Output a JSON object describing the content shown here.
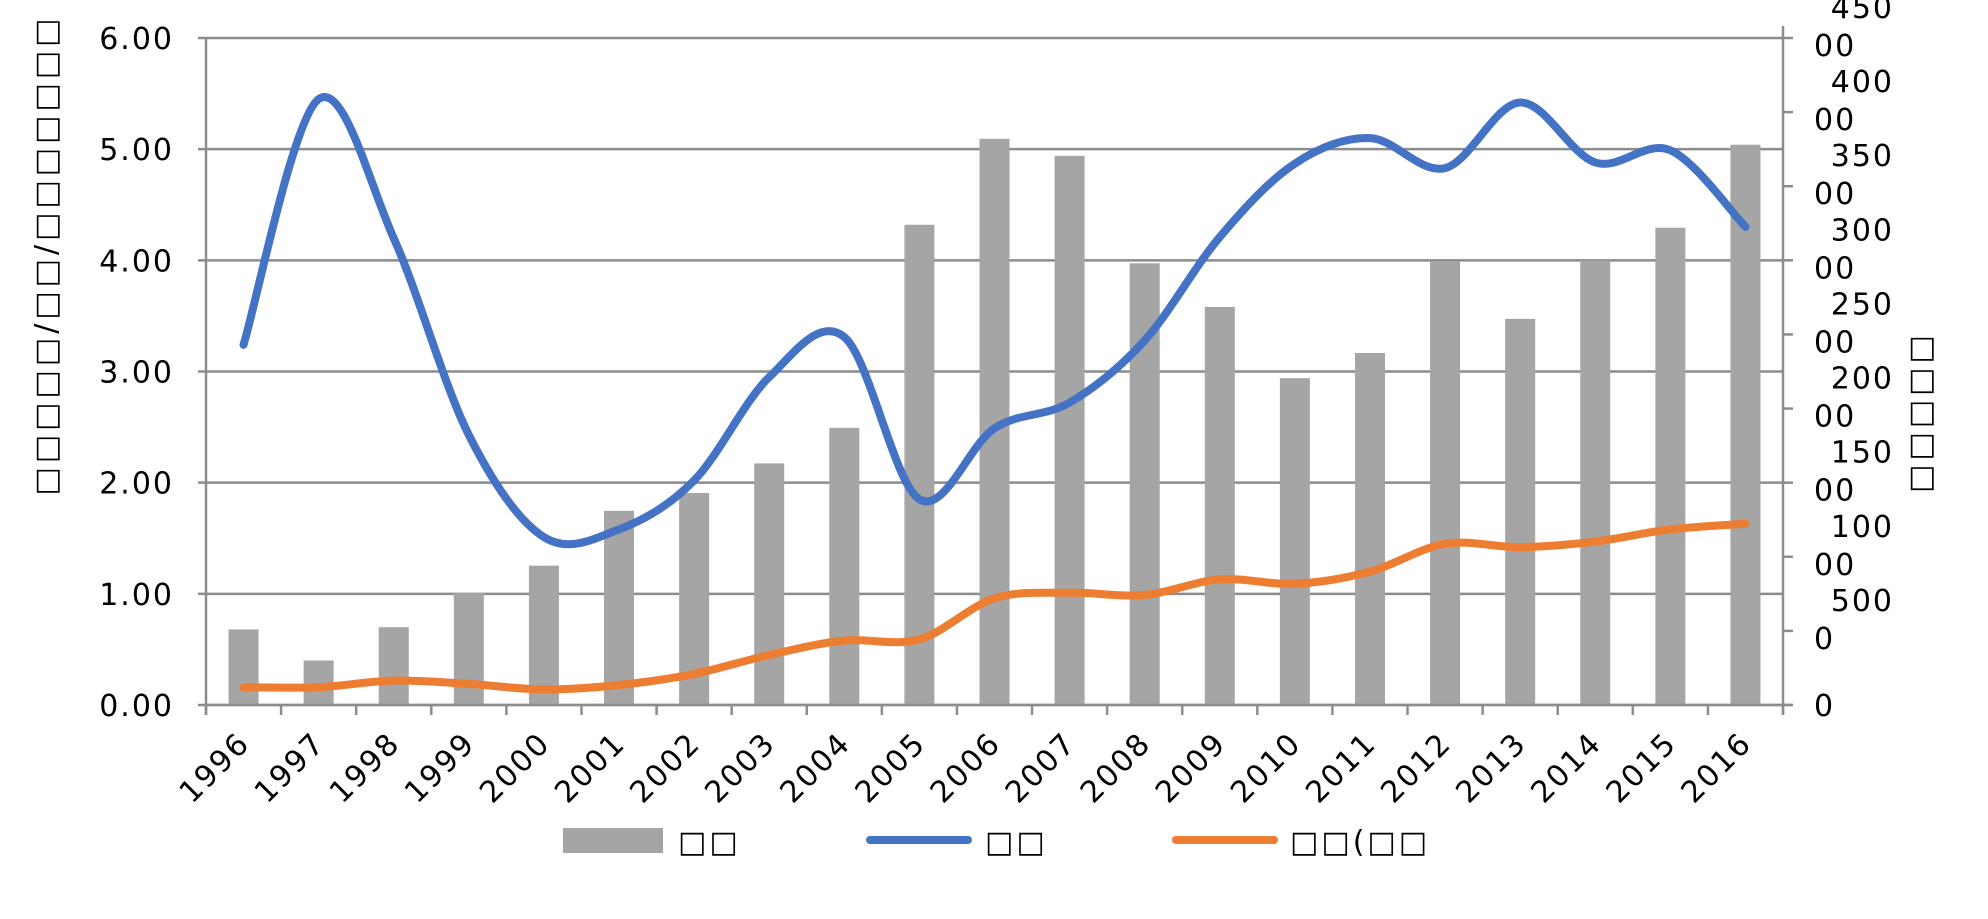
{
  "chart_data": {
    "type": "bar+line",
    "title": "",
    "categories": [
      "1996",
      "1997",
      "1998",
      "1999",
      "2000",
      "2001",
      "2002",
      "2003",
      "2004",
      "2005",
      "2006",
      "2007",
      "2008",
      "2009",
      "2010",
      "2011",
      "2012",
      "2013",
      "2014",
      "2015",
      "2016"
    ],
    "ylabel_left": "□□□□□/□□/□□□□□□□",
    "ylabel_right": "□□□□□",
    "left_axis": {
      "ylim": [
        0,
        6
      ],
      "ticks": [
        "0.00",
        "1.00",
        "2.00",
        "3.00",
        "4.00",
        "5.00",
        "6.00"
      ],
      "tick_values": [
        0,
        1,
        2,
        3,
        4,
        5,
        6
      ]
    },
    "right_axis": {
      "ylim": [
        0,
        45000
      ],
      "ticks": [
        {
          "line1": "0",
          "line2": ""
        },
        {
          "line1": "500",
          "line2": "0"
        },
        {
          "line1": "100",
          "line2": "00"
        },
        {
          "line1": "150",
          "line2": "00"
        },
        {
          "line1": "200",
          "line2": "00"
        },
        {
          "line1": "250",
          "line2": "00"
        },
        {
          "line1": "300",
          "line2": "00"
        },
        {
          "line1": "350",
          "line2": "00"
        },
        {
          "line1": "400",
          "line2": "00"
        },
        {
          "line1": "450",
          "line2": "00"
        }
      ],
      "tick_values": [
        0,
        5000,
        10000,
        15000,
        20000,
        25000,
        30000,
        35000,
        40000,
        45000
      ]
    },
    "grid": true,
    "legend_position": "bottom",
    "series": [
      {
        "name": "□□",
        "kind": "bar",
        "axis": "right",
        "color": "#A5A5A5",
        "values": [
          5100,
          3000,
          5250,
          7550,
          9400,
          13100,
          14300,
          16300,
          18700,
          32400,
          38200,
          37050,
          29800,
          26850,
          22050,
          23750,
          29950,
          26050,
          30000,
          32200,
          37800
        ]
      },
      {
        "name": "□□",
        "kind": "line",
        "axis": "left",
        "smooth": true,
        "color": "#4472C4",
        "values": [
          3.24,
          5.45,
          4.2,
          2.43,
          1.51,
          1.58,
          2.02,
          2.95,
          3.31,
          1.85,
          2.49,
          2.72,
          3.28,
          4.21,
          4.87,
          5.1,
          4.83,
          5.42,
          4.88,
          4.99,
          4.3
        ]
      },
      {
        "name": "□□(□□",
        "kind": "line",
        "axis": "left",
        "smooth": true,
        "color": "#ED7D31",
        "values": [
          0.16,
          0.16,
          0.22,
          0.19,
          0.14,
          0.18,
          0.28,
          0.45,
          0.58,
          0.59,
          0.96,
          1.01,
          0.99,
          1.13,
          1.09,
          1.2,
          1.45,
          1.42,
          1.47,
          1.58,
          1.63
        ]
      }
    ]
  }
}
